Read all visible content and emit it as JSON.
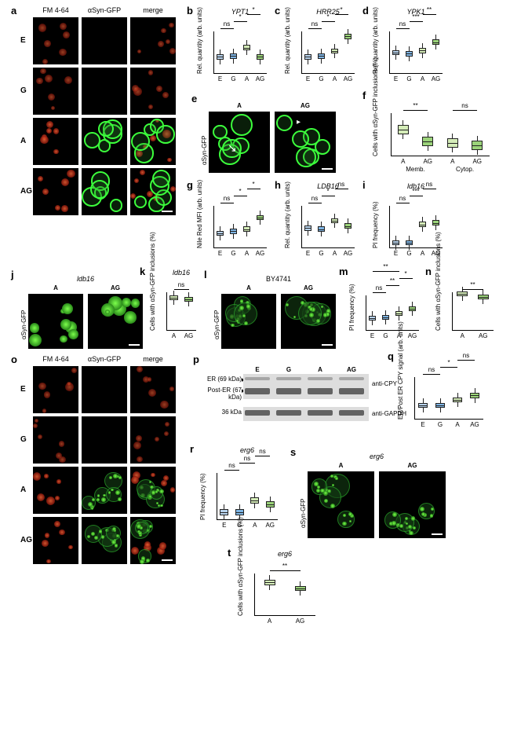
{
  "conditions": [
    "E",
    "G",
    "A",
    "AG"
  ],
  "colors": {
    "E": "#b7d2ec",
    "G": "#7eb4e3",
    "A": "#d4ecb8",
    "AG": "#9bd37a",
    "axis": "#000000"
  },
  "panelA": {
    "label": "a",
    "col_headers": [
      "FM 4-64",
      "αSyn-GFP",
      "merge"
    ],
    "rows": [
      "E",
      "G",
      "A",
      "AG"
    ]
  },
  "panelB": {
    "label": "b",
    "title": "YPT1",
    "ylabel": "Rel. quantity (arb. units)",
    "ylim": [
      0,
      2.5
    ],
    "vals": {
      "E": 1.0,
      "G": 1.05,
      "A": 1.55,
      "AG": 1.0
    },
    "sig": [
      [
        "E",
        "G",
        "ns"
      ],
      [
        "G",
        "A",
        "*"
      ],
      [
        "A",
        "AG",
        "*"
      ]
    ]
  },
  "panelC": {
    "label": "c",
    "title": "HRR25",
    "ylabel": "Rel. quantity (arb. units)",
    "ylim": [
      0,
      2.5
    ],
    "vals": {
      "E": 1.0,
      "G": 1.05,
      "A": 1.35,
      "AG": 2.2
    },
    "sig": [
      [
        "E",
        "G",
        "ns"
      ],
      [
        "G",
        "A",
        "*"
      ],
      [
        "A",
        "AG",
        "*"
      ]
    ]
  },
  "panelD": {
    "label": "d",
    "title": "YPK1",
    "ylabel": "Rel. quantity (arb. units)",
    "ylim": [
      0,
      2.0
    ],
    "vals": {
      "E": 1.0,
      "G": 0.95,
      "A": 1.1,
      "AG": 1.5
    },
    "sig": [
      [
        "E",
        "G",
        "ns"
      ],
      [
        "G",
        "A",
        "***"
      ],
      [
        "A",
        "AG",
        "**"
      ]
    ]
  },
  "panelE": {
    "label": "e",
    "cells": [
      "A",
      "AG"
    ],
    "ylabel": "αSyn-GFP"
  },
  "panelF": {
    "label": "f",
    "ylabel": "Cells with αSyn-GFP inclusions (%)",
    "ylim": [
      0,
      80
    ],
    "groups": [
      "Memb.",
      "Cytop."
    ],
    "vals": {
      "Memb": {
        "A": 50,
        "AG": 28
      },
      "Cytop": {
        "A": 25,
        "AG": 20
      }
    },
    "sig": [
      [
        "A_m",
        "AG_m",
        "**"
      ],
      [
        "A_c",
        "AG_c",
        "ns"
      ]
    ]
  },
  "panelG": {
    "label": "g",
    "ylabel": "Nile Red MFI (arb. units)",
    "ylim": [
      0,
      4000
    ],
    "vals": {
      "E": 1400,
      "G": 1600,
      "A": 1800,
      "AG": 2900
    },
    "sig": [
      [
        "E",
        "G",
        "ns"
      ],
      [
        "G",
        "A",
        "*"
      ],
      [
        "A",
        "AG",
        "*"
      ]
    ]
  },
  "panelH": {
    "label": "h",
    "title": "LDB16",
    "ylabel": "Rel. quantity (arb. units)",
    "ylim": [
      0,
      2.0
    ],
    "vals": {
      "E": 0.95,
      "G": 0.9,
      "A": 1.3,
      "AG": 1.05
    },
    "sig": [
      [
        "E",
        "G",
        "ns"
      ],
      [
        "G",
        "A",
        "*"
      ],
      [
        "A",
        "AG",
        "ns"
      ]
    ]
  },
  "panelI": {
    "label": "i",
    "title": "ldb16",
    "ylabel": "PI frequency (%)",
    "ylim": [
      0,
      8
    ],
    "vals": {
      "E": 1.0,
      "G": 1.0,
      "A": 4.5,
      "AG": 4.8
    },
    "sig": [
      [
        "E",
        "G",
        "ns"
      ],
      [
        "G",
        "A",
        "***"
      ],
      [
        "A",
        "AG",
        "ns"
      ]
    ]
  },
  "panelJ": {
    "label": "j",
    "title": "ldb16",
    "cells": [
      "A",
      "AG"
    ],
    "ylabel": "αSyn-GFP"
  },
  "panelK": {
    "label": "k",
    "title": "ldb16",
    "ylabel": "Cells with αSyn-GFP inclusions (%)",
    "ylim": [
      0,
      80
    ],
    "vals": {
      "A": 68,
      "AG": 65
    },
    "sig": [
      [
        "A",
        "AG",
        "ns"
      ]
    ]
  },
  "panelL": {
    "label": "l",
    "title": "BY4741",
    "cells": [
      "A",
      "AG"
    ],
    "ylabel": "αSyn-GFP"
  },
  "panelM": {
    "label": "m",
    "ylabel": "PI frequency (%)",
    "ylim": [
      0,
      12
    ],
    "vals": {
      "E": 4.2,
      "G": 4.5,
      "A": 6.0,
      "AG": 7.5
    },
    "sig": [
      [
        "E",
        "G",
        "ns"
      ],
      [
        "G",
        "A",
        "**"
      ],
      [
        "A",
        "AG",
        "*"
      ],
      [
        "E",
        "A",
        "**"
      ]
    ]
  },
  "panelN": {
    "label": "n",
    "ylabel": "Cells with αSyn-GFP inclusions (%)",
    "ylim": [
      0,
      80
    ],
    "vals": {
      "A": 76,
      "AG": 70
    },
    "sig": [
      [
        "A",
        "AG",
        "**"
      ]
    ]
  },
  "panelO": {
    "label": "o",
    "col_headers": [
      "FM 4-64",
      "αSyn-GFP",
      "merge"
    ],
    "rows": [
      "E",
      "G",
      "A",
      "AG"
    ]
  },
  "panelP": {
    "label": "p",
    "lanes": [
      "E",
      "G",
      "A",
      "AG"
    ],
    "rows": [
      {
        "label": "ER (69 kDa)",
        "anti": "anti-CPY"
      },
      {
        "label": "Post-ER (67 kDa)",
        "anti": ""
      },
      {
        "label": "36 kDa",
        "anti": "anti-GAPDH"
      }
    ]
  },
  "panelQ": {
    "label": "q",
    "ylabel": "ER/Post ER CPY signal (arb. units)",
    "ylim": [
      0,
      0.3
    ],
    "vals": {
      "E": 0.1,
      "G": 0.1,
      "A": 0.14,
      "AG": 0.17
    },
    "sig": [
      [
        "E",
        "G",
        "ns"
      ],
      [
        "G",
        "A",
        "*"
      ],
      [
        "A",
        "AG",
        "ns"
      ]
    ]
  },
  "panelR": {
    "label": "r",
    "title": "erg6",
    "ylabel": "PI frequency (%)",
    "ylim": [
      0,
      6
    ],
    "vals": {
      "E": 1.0,
      "G": 1.0,
      "A": 2.5,
      "AG": 2.0
    },
    "sig": [
      [
        "E",
        "G",
        "ns"
      ],
      [
        "G",
        "A",
        "ns"
      ],
      [
        "A",
        "AG",
        "ns"
      ]
    ]
  },
  "panelS": {
    "label": "s",
    "title": "erg6",
    "cells": [
      "A",
      "AG"
    ],
    "ylabel": "αSyn-GFP"
  },
  "panelT": {
    "label": "t",
    "title": "erg6",
    "ylabel": "Cells with αSyn-GFP inclusions (%)",
    "ylim": [
      0,
      80
    ],
    "vals": {
      "A": 63,
      "AG": 52
    },
    "sig": [
      [
        "A",
        "AG",
        "**"
      ]
    ]
  }
}
